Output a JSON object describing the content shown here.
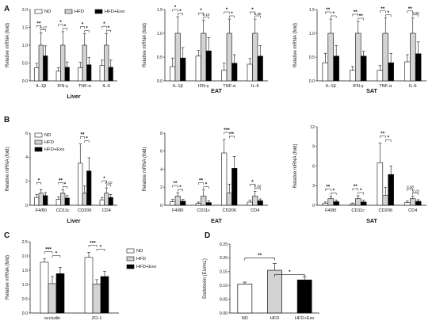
{
  "colors": {
    "ND": "#ffffff",
    "HFD": "#d3d3d3",
    "HFD+Exo": "#000000",
    "axis": "#111111"
  },
  "legend": [
    "ND",
    "HFD",
    "HFD+Exo"
  ],
  "chart_data": [
    {
      "id": "A1",
      "panel_label": "A",
      "type": "bar",
      "title": "Liver",
      "ylabel": "Relative mRNA (fold)",
      "ylim": [
        0,
        2
      ],
      "yticks": [
        "0.0",
        "0.5",
        "1.0",
        "1.5",
        "2.0"
      ],
      "categories": [
        "IL-1β",
        "IFN-γ",
        "TNF-α",
        "IL-6"
      ],
      "series": [
        {
          "name": "ND",
          "values": [
            0.37,
            0.27,
            0.37,
            0.43
          ],
          "errors": [
            0.12,
            0.1,
            0.15,
            0.15
          ]
        },
        {
          "name": "HFD",
          "values": [
            1.0,
            1.0,
            1.0,
            1.0
          ],
          "errors": [
            0.35,
            0.38,
            0.32,
            0.33
          ]
        },
        {
          "name": "HFD+Exo",
          "values": [
            0.7,
            0.38,
            0.45,
            0.38
          ],
          "errors": [
            0.28,
            0.15,
            0.2,
            0.2
          ]
        }
      ],
      "significance": [
        [
          "**",
          "0.07"
        ],
        [
          "*",
          "*"
        ],
        [
          "*",
          "*"
        ],
        [
          "*",
          "*"
        ]
      ]
    },
    {
      "id": "A2",
      "type": "bar",
      "title": "EAT",
      "ylabel": "Relative mRNA (fold)",
      "ylim": [
        0,
        1.5
      ],
      "yticks": [
        "0.0",
        "0.5",
        "1.0",
        "1.5"
      ],
      "categories": [
        "IL-1β",
        "IFN-γ",
        "TNF-α",
        "IL-6"
      ],
      "series": [
        {
          "name": "ND",
          "values": [
            0.3,
            0.52,
            0.22,
            0.35
          ],
          "errors": [
            0.18,
            0.12,
            0.15,
            0.12
          ]
        },
        {
          "name": "HFD",
          "values": [
            1.0,
            1.0,
            1.0,
            1.0
          ],
          "errors": [
            0.35,
            0.28,
            0.3,
            0.3
          ]
        },
        {
          "name": "HFD+Exo",
          "values": [
            0.48,
            0.63,
            0.37,
            0.52
          ],
          "errors": [
            0.22,
            0.28,
            0.18,
            0.22
          ]
        }
      ],
      "significance": [
        [
          "*",
          "*"
        ],
        [
          "*",
          "0.10"
        ],
        [
          "*",
          "*"
        ],
        [
          "*",
          "0.06"
        ]
      ]
    },
    {
      "id": "A3",
      "type": "bar",
      "title": "SAT",
      "ylabel": "Relative mRNA (fold)",
      "ylim": [
        0,
        1.5
      ],
      "yticks": [
        "0.0",
        "0.5",
        "1.0",
        "1.5"
      ],
      "categories": [
        "IL-1β",
        "IFN-γ",
        "TNF-α",
        "IL-6"
      ],
      "series": [
        {
          "name": "ND",
          "values": [
            0.38,
            0.22,
            0.22,
            0.4
          ],
          "errors": [
            0.2,
            0.08,
            0.1,
            0.15
          ]
        },
        {
          "name": "HFD",
          "values": [
            1.0,
            1.0,
            1.0,
            1.0
          ],
          "errors": [
            0.3,
            0.25,
            0.32,
            0.32
          ]
        },
        {
          "name": "HFD+Exo",
          "values": [
            0.52,
            0.52,
            0.38,
            0.57
          ],
          "errors": [
            0.22,
            0.1,
            0.2,
            0.25
          ]
        }
      ],
      "significance": [
        [
          "**",
          "*"
        ],
        [
          "**",
          "**"
        ],
        [
          "**",
          "*"
        ],
        [
          "**",
          "0.06"
        ]
      ]
    },
    {
      "id": "B1",
      "panel_label": "B",
      "type": "bar",
      "title": "Liver",
      "ylabel": "Relative mRNA (fold)",
      "ylim": [
        0,
        6
      ],
      "yticks": [
        "0",
        "2",
        "4",
        "6"
      ],
      "categories": [
        "F4/80",
        "CD11c",
        "CD206",
        "CD4"
      ],
      "series": [
        {
          "name": "ND",
          "values": [
            0.65,
            0.5,
            3.5,
            0.45
          ],
          "errors": [
            0.25,
            0.2,
            1.6,
            0.2
          ]
        },
        {
          "name": "HFD",
          "values": [
            1.0,
            1.0,
            1.0,
            1.0
          ],
          "errors": [
            0.3,
            0.3,
            0.6,
            0.45
          ]
        },
        {
          "name": "HFD+Exo",
          "values": [
            0.8,
            0.6,
            2.85,
            0.65
          ],
          "errors": [
            0.25,
            0.2,
            1.1,
            0.25
          ]
        }
      ],
      "significance": [
        [
          "*",
          ""
        ],
        [
          "**",
          "*"
        ],
        [
          "**",
          "*"
        ],
        [
          "*",
          "0.10"
        ]
      ]
    },
    {
      "id": "B2",
      "type": "bar",
      "title": "EAT",
      "ylabel": "Relative mRNA (fold)",
      "ylim": [
        0,
        8
      ],
      "yticks": [
        "0",
        "2",
        "4",
        "6",
        "8"
      ],
      "categories": [
        "F4/80",
        "CD11c",
        "CD206",
        "CD4"
      ],
      "series": [
        {
          "name": "ND",
          "values": [
            0.4,
            0.2,
            5.8,
            0.35
          ],
          "errors": [
            0.25,
            0.15,
            1.5,
            0.2
          ]
        },
        {
          "name": "HFD",
          "values": [
            1.0,
            1.0,
            1.35,
            1.0
          ],
          "errors": [
            0.4,
            0.7,
            1.0,
            0.55
          ]
        },
        {
          "name": "HFD+Exo",
          "values": [
            0.45,
            0.3,
            4.1,
            0.5
          ],
          "errors": [
            0.2,
            0.2,
            1.3,
            0.2
          ]
        }
      ],
      "significance": [
        [
          "**",
          "*"
        ],
        [
          "**",
          "*"
        ],
        [
          "***",
          "**"
        ],
        [
          "*",
          "0.06"
        ]
      ]
    },
    {
      "id": "B3",
      "type": "bar",
      "title": "SAT",
      "ylabel": "Relative mRNA (fold)",
      "ylim": [
        0,
        12
      ],
      "yticks": [
        "0",
        "3",
        "6",
        "9",
        "12"
      ],
      "categories": [
        "F4/80",
        "CD11c",
        "CD206",
        "CD4"
      ],
      "series": [
        {
          "name": "ND",
          "values": [
            0.3,
            0.2,
            6.5,
            0.4
          ],
          "errors": [
            0.2,
            0.15,
            3.0,
            0.25
          ]
        },
        {
          "name": "HFD",
          "values": [
            1.0,
            1.0,
            1.5,
            1.0
          ],
          "errors": [
            0.4,
            0.45,
            1.2,
            0.4
          ]
        },
        {
          "name": "HFD+Exo",
          "values": [
            0.55,
            0.5,
            4.7,
            0.6
          ],
          "errors": [
            0.25,
            0.25,
            1.3,
            0.25
          ]
        }
      ],
      "significance": [
        [
          "**",
          "*"
        ],
        [
          "**",
          "*"
        ],
        [
          "**",
          "*"
        ],
        [
          "0.08",
          "0.10"
        ]
      ]
    },
    {
      "id": "C",
      "panel_label": "C",
      "type": "bar",
      "title": "",
      "ylabel": "Relative mRNA (fold)",
      "ylim": [
        0,
        2.5
      ],
      "yticks": [
        "0.0",
        "0.5",
        "1.0",
        "1.5",
        "2.0",
        "2.5"
      ],
      "categories": [
        "occludin",
        "ZO-1"
      ],
      "series": [
        {
          "name": "ND",
          "values": [
            1.78,
            1.95
          ],
          "errors": [
            0.12,
            0.18
          ]
        },
        {
          "name": "HFD",
          "values": [
            1.03,
            1.02
          ],
          "errors": [
            0.25,
            0.15
          ]
        },
        {
          "name": "HFD+Exo",
          "values": [
            1.38,
            1.28
          ],
          "errors": [
            0.22,
            0.18
          ]
        }
      ],
      "significance": [
        [
          "***",
          "*"
        ],
        [
          "***",
          "*"
        ]
      ]
    },
    {
      "id": "D",
      "panel_label": "D",
      "type": "bar",
      "title": "",
      "ylabel": "Endotoxin (EU/mL)",
      "ylim": [
        0,
        0.25
      ],
      "yticks": [
        "0.00",
        "0.05",
        "0.10",
        "0.15",
        "0.20",
        "0.25"
      ],
      "categories": [
        "ND",
        "HFD",
        "HFD+Exo"
      ],
      "values": [
        0.105,
        0.155,
        0.12
      ],
      "errors": [
        0.007,
        0.025,
        0.012
      ],
      "significance": [
        "**",
        "*"
      ]
    }
  ]
}
